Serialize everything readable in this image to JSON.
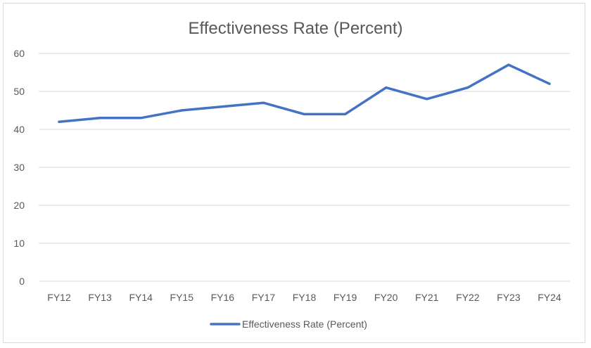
{
  "chart_data": {
    "type": "line",
    "title": "Effectiveness Rate (Percent)",
    "xlabel": "",
    "ylabel": "",
    "categories": [
      "FY12",
      "FY13",
      "FY14",
      "FY15",
      "FY16",
      "FY17",
      "FY18",
      "FY19",
      "FY20",
      "FY21",
      "FY22",
      "FY23",
      "FY24"
    ],
    "series": [
      {
        "name": "Effectiveness Rate (Percent)",
        "color": "#4472c4",
        "values": [
          42,
          43,
          43,
          45,
          46,
          47,
          44,
          44,
          51,
          48,
          51,
          57,
          52
        ]
      }
    ],
    "ylim": [
      0,
      60
    ],
    "yticks": [
      0,
      10,
      20,
      30,
      40,
      50,
      60
    ],
    "grid": "horizontal",
    "legend_position": "bottom"
  }
}
